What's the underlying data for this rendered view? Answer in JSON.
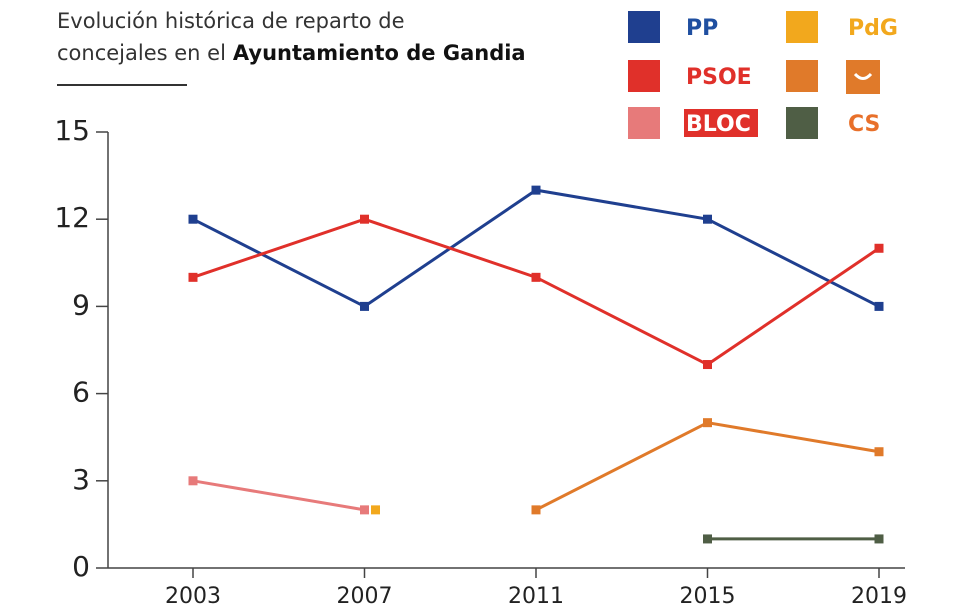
{
  "chart_data": {
    "type": "line",
    "title_lines": [
      "Evolución histórica de reparto de",
      "concejales en el"
    ],
    "title_bold": "Ayuntamiento de Gandia",
    "categories": [
      "2003",
      "2007",
      "2011",
      "2015",
      "2019"
    ],
    "ylim": [
      0,
      15
    ],
    "yticks": [
      0,
      3,
      6,
      9,
      12,
      15
    ],
    "series": [
      {
        "name": "PP",
        "color": "#1f3f8f",
        "legend_text_color": "#1f4fa0",
        "values": [
          12,
          9,
          13,
          12,
          9
        ]
      },
      {
        "name": "PSOE",
        "color": "#e0302a",
        "legend_text_color": "#e0302a",
        "values": [
          10,
          12,
          10,
          7,
          11
        ]
      },
      {
        "name": "BLOC",
        "color": "#e77a7a",
        "legend_text_color": "#ffffff",
        "values": [
          3,
          2,
          null,
          null,
          null
        ]
      },
      {
        "name": "PdG",
        "color": "#f2a81d",
        "legend_text_color": "#f2a81d",
        "values": [
          null,
          2,
          null,
          null,
          null
        ]
      },
      {
        "color": "#e07a2a",
        "values": [
          null,
          null,
          2,
          5,
          4
        ]
      },
      {
        "name": "CS",
        "color": "#4f5e45",
        "legend_text_color": "#e8702a",
        "values": [
          null,
          null,
          null,
          1,
          1
        ]
      }
    ]
  }
}
